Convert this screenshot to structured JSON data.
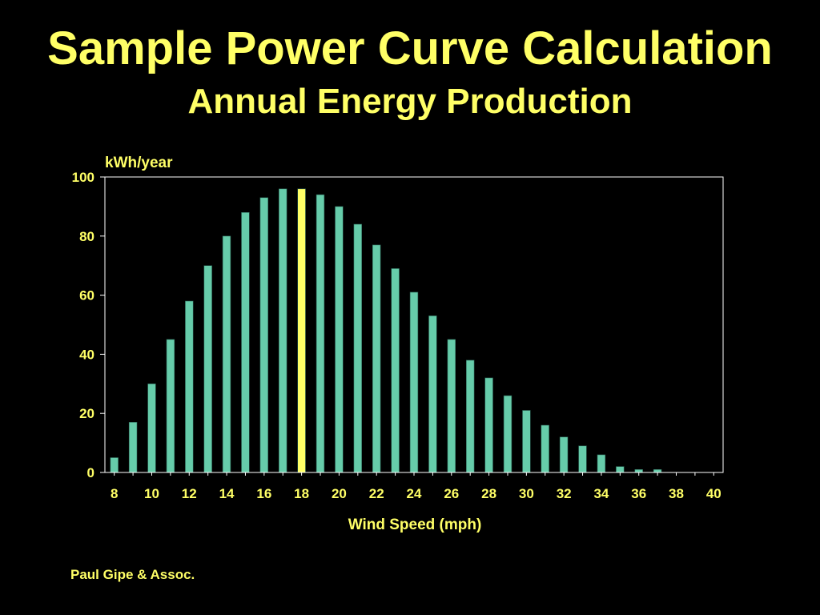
{
  "page": {
    "title": "Sample Power Curve Calculation",
    "subtitle": "Annual Energy Production",
    "footer": "Paul Gipe & Assoc."
  },
  "colors": {
    "background": "#000000",
    "title": "#ffff66",
    "bar": "#66ccaa",
    "highlight": "#ffff66",
    "axis": "#ffffff"
  },
  "chart_data": {
    "type": "bar",
    "title": "Sample Power Curve Calculation",
    "subtitle": "Annual Energy Production",
    "xlabel": "Wind Speed (mph)",
    "ylabel": "kWh/year",
    "x": [
      8,
      9,
      10,
      11,
      12,
      13,
      14,
      15,
      16,
      17,
      18,
      19,
      20,
      21,
      22,
      23,
      24,
      25,
      26,
      27,
      28,
      29,
      30,
      31,
      32,
      33,
      34,
      35,
      36,
      37,
      38,
      39,
      40
    ],
    "values": [
      5,
      17,
      30,
      45,
      58,
      70,
      80,
      88,
      93,
      96,
      96,
      94,
      90,
      84,
      77,
      69,
      61,
      53,
      45,
      38,
      32,
      26,
      21,
      16,
      12,
      9,
      6,
      2,
      1,
      1,
      0,
      0,
      0
    ],
    "highlight_x": 18,
    "xticks": [
      8,
      10,
      12,
      14,
      16,
      18,
      20,
      22,
      24,
      26,
      28,
      30,
      32,
      34,
      36,
      38,
      40
    ],
    "yticks": [
      0,
      20,
      40,
      60,
      80,
      100
    ],
    "xlim": [
      8,
      40
    ],
    "ylim": [
      0,
      100
    ],
    "grid": false,
    "legend": "none"
  }
}
